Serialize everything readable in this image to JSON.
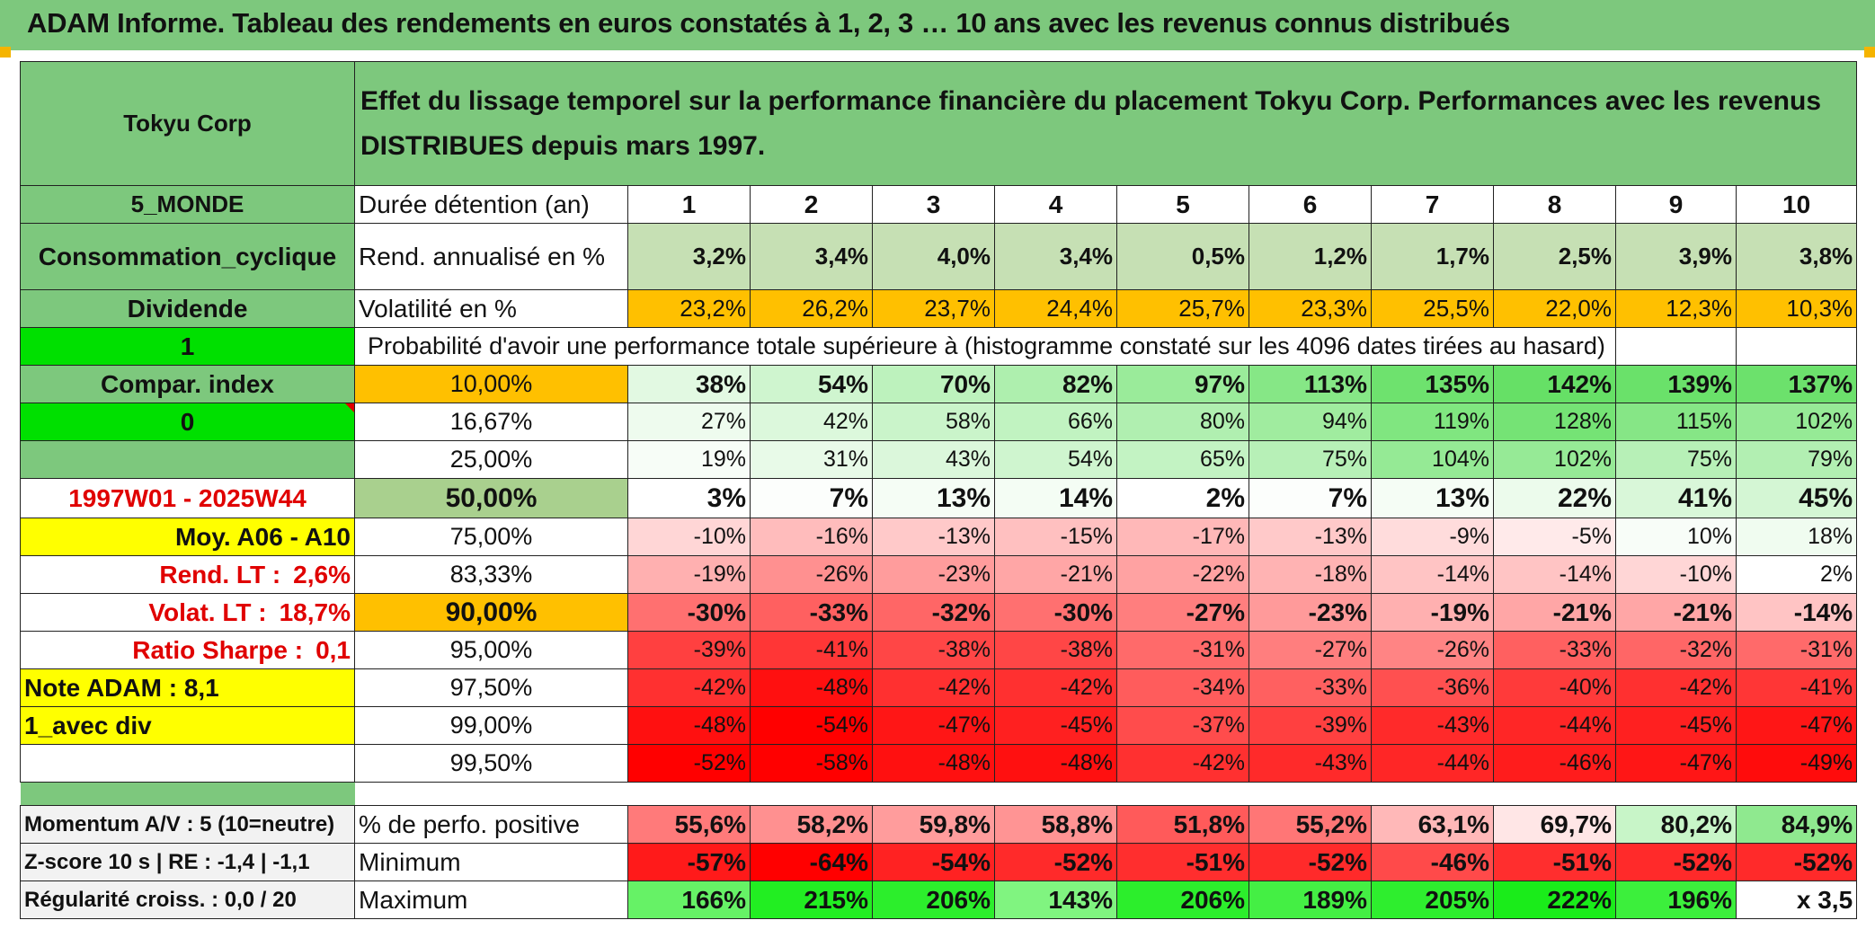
{
  "title": "ADAM Informe. Tableau des rendements en euros constatés à 1, 2, 3 … 10 ans avec les revenus connus distribués",
  "header": {
    "left": "Tokyu Corp",
    "description": "Effet du lissage temporel sur la performance financière du placement Tokyu Corp. Performances avec les revenus DISTRIBUES depuis mars 1997."
  },
  "left_panel": {
    "region": "5_MONDE",
    "sector": "Consommation_cyclique",
    "dividend": "Dividende",
    "flag1": "1",
    "compar_index": "Compar. index",
    "flag2": "0",
    "period": "1997W01 - 2025W44",
    "moy": "Moy. A06 - A10",
    "rend_lt_label": "Rend. LT :",
    "rend_lt_value": "2,6%",
    "volat_lt_label": "Volat. LT :",
    "volat_lt_value": "18,7%",
    "sharpe_label": "Ratio Sharpe :",
    "sharpe_value": "0,1",
    "note_adam": "Note ADAM : 8,1",
    "avec_div": "1_avec div",
    "momentum": "Momentum A/V : 5 (10=neutre)",
    "zscore": "Z-score 10 s | RE : -1,4 | -1,1",
    "regularite": "Régularité croiss. : 0,0 / 20"
  },
  "labels": {
    "duree": "Durée détention (an)",
    "rend": "Rend. annualisé en %",
    "volat": "Volatilité en %",
    "proba": "Probabilité d'avoir une performance totale supérieure à (histogramme constaté sur les 4096 dates tirées au hasard)",
    "perfo_pos": "% de perfo. positive",
    "minimum": "Minimum",
    "maximum": "Maximum"
  },
  "years": [
    "1",
    "2",
    "3",
    "4",
    "5",
    "6",
    "7",
    "8",
    "9",
    "10"
  ],
  "rend": [
    "3,2%",
    "3,4%",
    "4,0%",
    "3,4%",
    "0,5%",
    "1,2%",
    "1,7%",
    "2,5%",
    "3,9%",
    "3,8%"
  ],
  "volat": [
    "23,2%",
    "26,2%",
    "23,7%",
    "24,4%",
    "25,7%",
    "23,3%",
    "25,5%",
    "22,0%",
    "12,3%",
    "10,3%"
  ],
  "quantiles": [
    {
      "label": "10,00%",
      "values": [
        "38%",
        "54%",
        "70%",
        "82%",
        "97%",
        "113%",
        "135%",
        "142%",
        "139%",
        "137%"
      ],
      "colors": [
        "#e2f9e2",
        "#cff5cf",
        "#bdf2bd",
        "#aeefae",
        "#9aeb9a",
        "#86e786",
        "#6ee26e",
        "#66e066",
        "#6ae16a",
        "#6ce16c"
      ]
    },
    {
      "label": "16,67%",
      "values": [
        "27%",
        "42%",
        "58%",
        "66%",
        "80%",
        "94%",
        "119%",
        "128%",
        "115%",
        "102%"
      ],
      "colors": [
        "#eefbee",
        "#dcf8dc",
        "#caf4ca",
        "#c1f3c1",
        "#b0efb0",
        "#a0ec9f",
        "#80e680",
        "#75e375",
        "#86e686",
        "#96ea96"
      ]
    },
    {
      "label": "25,00%",
      "values": [
        "19%",
        "31%",
        "43%",
        "54%",
        "65%",
        "75%",
        "104%",
        "102%",
        "75%",
        "79%"
      ],
      "colors": [
        "#f7fdf7",
        "#e8faE8",
        "#dbf7db",
        "#cff5cf",
        "#c3f3c3",
        "#b7f0b7",
        "#95ea95",
        "#96ea96",
        "#b7f0b7",
        "#b2efb2"
      ]
    },
    {
      "label": "50,00%",
      "values": [
        "3%",
        "7%",
        "13%",
        "14%",
        "2%",
        "7%",
        "13%",
        "22%",
        "41%",
        "45%"
      ],
      "colors": [
        "#ffffff",
        "#fcfefc",
        "#f5fdf5",
        "#f4fdf4",
        "#ffffff",
        "#fcfefc",
        "#f5fdf5",
        "#ecfbec",
        "#d9f7d9",
        "#d4f6d4"
      ]
    },
    {
      "label": "75,00%",
      "values": [
        "-10%",
        "-16%",
        "-13%",
        "-15%",
        "-17%",
        "-13%",
        "-9%",
        "-5%",
        "10%",
        "18%"
      ],
      "colors": [
        "#ffd6d6",
        "#ffbcbc",
        "#ffc9c9",
        "#ffc0c0",
        "#ffb8b8",
        "#ffc9c9",
        "#ffdcdc",
        "#ffeaea",
        "#f8fdf8",
        "#f0fcf0"
      ]
    },
    {
      "label": "83,33%",
      "values": [
        "-19%",
        "-26%",
        "-23%",
        "-21%",
        "-22%",
        "-18%",
        "-14%",
        "-14%",
        "-10%",
        "2%"
      ],
      "colors": [
        "#ffb0b0",
        "#ff9090",
        "#ff9c9c",
        "#ffa6a6",
        "#ffa2a2",
        "#ffb3b3",
        "#ffc4c4",
        "#ffc4c4",
        "#ffd6d6",
        "#ffffff"
      ]
    },
    {
      "label": "90,00%",
      "values": [
        "-30%",
        "-33%",
        "-32%",
        "-30%",
        "-27%",
        "-23%",
        "-19%",
        "-21%",
        "-21%",
        "-14%"
      ],
      "colors": [
        "#ff7070",
        "#ff6060",
        "#ff6666",
        "#ff7070",
        "#ff7e7e",
        "#ff9a9a",
        "#ffb0b0",
        "#ffa6a6",
        "#ffa6a6",
        "#ffc4c4"
      ]
    },
    {
      "label": "95,00%",
      "values": [
        "-39%",
        "-41%",
        "-38%",
        "-38%",
        "-31%",
        "-27%",
        "-26%",
        "-33%",
        "-32%",
        "-31%"
      ],
      "colors": [
        "#ff4040",
        "#ff3636",
        "#ff4646",
        "#ff4646",
        "#ff6a6a",
        "#ff7e7e",
        "#ff8484",
        "#ff6060",
        "#ff6666",
        "#ff6a6a"
      ]
    },
    {
      "label": "97,50%",
      "values": [
        "-42%",
        "-48%",
        "-42%",
        "-42%",
        "-34%",
        "-33%",
        "-36%",
        "-40%",
        "-42%",
        "-41%"
      ],
      "colors": [
        "#ff3030",
        "#ff1010",
        "#ff3030",
        "#ff3030",
        "#ff5c5c",
        "#ff6060",
        "#ff5050",
        "#ff3a3a",
        "#ff3030",
        "#ff3636"
      ]
    },
    {
      "label": "99,00%",
      "values": [
        "-48%",
        "-54%",
        "-47%",
        "-45%",
        "-37%",
        "-39%",
        "-43%",
        "-44%",
        "-45%",
        "-47%"
      ],
      "colors": [
        "#ff1010",
        "#ff0000",
        "#ff1616",
        "#ff2020",
        "#ff4c4c",
        "#ff4040",
        "#ff2a2a",
        "#ff2626",
        "#ff2020",
        "#ff1616"
      ]
    },
    {
      "label": "99,50%",
      "values": [
        "-52%",
        "-58%",
        "-48%",
        "-48%",
        "-42%",
        "-43%",
        "-44%",
        "-46%",
        "-47%",
        "-49%"
      ],
      "colors": [
        "#ff0000",
        "#ff0000",
        "#ff1010",
        "#ff1010",
        "#ff3030",
        "#ff2a2a",
        "#ff2626",
        "#ff1c1c",
        "#ff1616",
        "#ff0c0c"
      ]
    }
  ],
  "perfo_pos": {
    "values": [
      "55,6%",
      "58,2%",
      "59,8%",
      "58,8%",
      "51,8%",
      "55,2%",
      "63,1%",
      "69,7%",
      "80,2%",
      "84,9%"
    ],
    "colors": [
      "#ff7a7a",
      "#ff9090",
      "#ff9c9c",
      "#ff9494",
      "#ff5a5a",
      "#ff7676",
      "#ffb8b8",
      "#ffe6e6",
      "#c8f5c8",
      "#8fe98f"
    ]
  },
  "minimum": {
    "values": [
      "-57%",
      "-64%",
      "-54%",
      "-52%",
      "-51%",
      "-52%",
      "-46%",
      "-51%",
      "-52%",
      "-52%"
    ],
    "colors": [
      "#ff1a1a",
      "#ff0000",
      "#ff2222",
      "#ff2a2a",
      "#ff2e2e",
      "#ff2a2a",
      "#ff4a4a",
      "#ff2e2e",
      "#ff2a2a",
      "#ff2a2a"
    ]
  },
  "maximum": {
    "values": [
      "166%",
      "215%",
      "206%",
      "143%",
      "206%",
      "189%",
      "205%",
      "222%",
      "196%"
    ],
    "colors": [
      "#66f266",
      "#22ee22",
      "#2cee2c",
      "#80f480",
      "#2cee2c",
      "#44ef44",
      "#2eee2e",
      "#1aec1a",
      "#3cef3c"
    ],
    "multiplier": "x 3,5"
  },
  "colors": {
    "green_mid": "#7dc87d",
    "green_hi": "#00e000",
    "yellow": "#ffff00",
    "orange": "#ffc000",
    "red_text": "#e00000"
  }
}
